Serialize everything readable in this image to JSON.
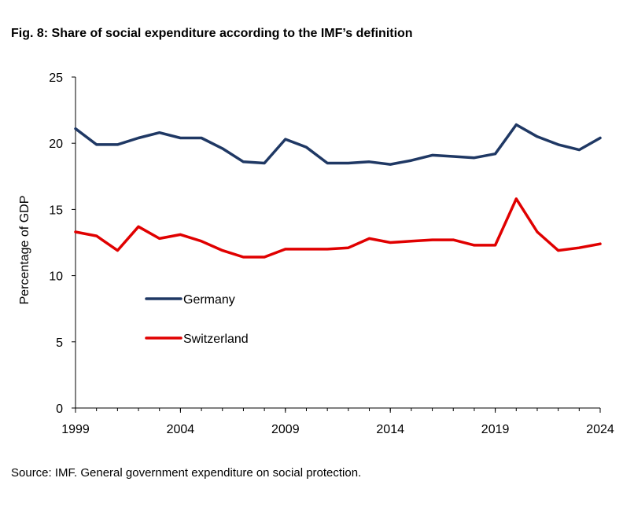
{
  "figure": {
    "title": "Fig. 8: Share of social expenditure according to the IMF’s definition",
    "source": "Source: IMF. General government expenditure on social protection."
  },
  "chart_data": {
    "type": "line",
    "title": "Fig. 8: Share of social expenditure according to the IMF’s definition",
    "xlabel": "",
    "ylabel": "Percentage of GDP",
    "x": [
      1999,
      2000,
      2001,
      2002,
      2003,
      2004,
      2005,
      2006,
      2007,
      2008,
      2009,
      2010,
      2011,
      2012,
      2013,
      2014,
      2015,
      2016,
      2017,
      2018,
      2019,
      2020,
      2021,
      2022,
      2023,
      2024
    ],
    "xlim": [
      1999,
      2024
    ],
    "ylim": [
      0,
      25
    ],
    "xticks": [
      1999,
      2004,
      2009,
      2014,
      2019,
      2024
    ],
    "yticks": [
      0,
      5,
      10,
      15,
      20,
      25
    ],
    "grid": false,
    "legend_position": "center-left",
    "series": [
      {
        "name": "Germany",
        "color": "#1f3864",
        "values": [
          21.1,
          19.9,
          19.9,
          20.4,
          20.8,
          20.4,
          20.4,
          19.6,
          18.6,
          18.5,
          20.3,
          19.7,
          18.5,
          18.5,
          18.6,
          18.4,
          18.7,
          19.1,
          19.0,
          18.9,
          19.2,
          21.4,
          20.5,
          19.9,
          19.5,
          20.4
        ]
      },
      {
        "name": "Switzerland",
        "color": "#e00000",
        "values": [
          13.3,
          13.0,
          11.9,
          13.7,
          12.8,
          13.1,
          12.6,
          11.9,
          11.4,
          11.4,
          12.0,
          12.0,
          12.0,
          12.1,
          12.8,
          12.5,
          12.6,
          12.7,
          12.7,
          12.3,
          12.3,
          15.8,
          13.3,
          11.9,
          12.1,
          12.4
        ]
      }
    ]
  }
}
